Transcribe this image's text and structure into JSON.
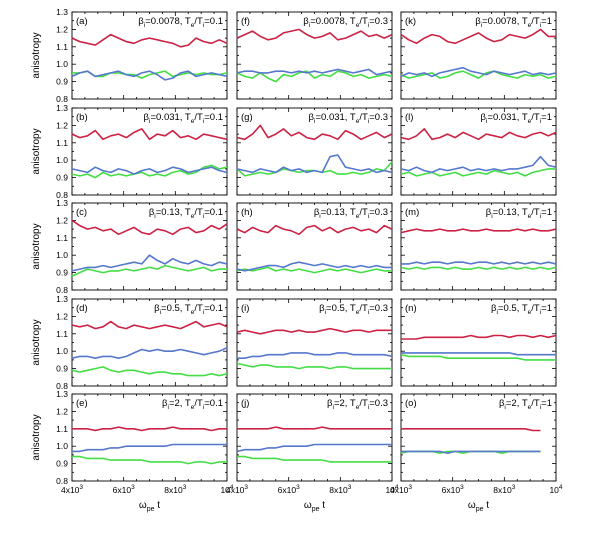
{
  "figure": {
    "y_label": "anisotropy",
    "x_label_main": "ω",
    "x_label_sub": "pe",
    "x_label_tail": " t"
  },
  "colors": {
    "red": "#cc2244",
    "blue": "#5577cc",
    "green": "#44dd44"
  },
  "chart_data": {
    "type": "line",
    "grid": false,
    "x": [
      4000,
      4300,
      4600,
      4900,
      5200,
      5500,
      5800,
      6100,
      6400,
      6700,
      7000,
      7300,
      7600,
      7900,
      8200,
      8500,
      8800,
      9100,
      9400,
      9700,
      10000
    ],
    "xlim": [
      4000,
      10000
    ],
    "ylim": [
      0.8,
      1.3
    ],
    "x_ticks": [
      {
        "main": "4x10",
        "exp": "3"
      },
      {
        "main": "6x10",
        "exp": "3"
      },
      {
        "main": "8x10",
        "exp": "3"
      },
      {
        "main": "10",
        "exp": "4"
      }
    ],
    "y_ticks": [
      "0.8",
      "0.9",
      "1.0",
      "1.1",
      "1.2",
      "1.3"
    ],
    "panels": [
      {
        "label": "(a)",
        "beta": "0.0078",
        "ratio": "0.1",
        "red": [
          1.15,
          1.13,
          1.12,
          1.11,
          1.14,
          1.17,
          1.15,
          1.13,
          1.12,
          1.14,
          1.15,
          1.14,
          1.13,
          1.12,
          1.1,
          1.11,
          1.15,
          1.13,
          1.12,
          1.14,
          1.12
        ],
        "blue": [
          0.93,
          0.95,
          0.96,
          0.93,
          0.94,
          0.95,
          0.96,
          0.94,
          0.93,
          0.95,
          0.96,
          0.94,
          0.91,
          0.92,
          0.95,
          0.96,
          0.93,
          0.94,
          0.95,
          0.94,
          0.93
        ],
        "green": [
          0.95,
          0.95,
          0.96,
          0.93,
          0.93,
          0.95,
          0.95,
          0.94,
          0.94,
          0.92,
          0.94,
          0.95,
          0.96,
          0.93,
          0.94,
          0.95,
          0.94,
          0.95,
          0.94,
          0.94,
          0.95
        ]
      },
      {
        "label": "(b)",
        "beta": "0.031",
        "ratio": "0.1",
        "red": [
          1.15,
          1.13,
          1.14,
          1.17,
          1.12,
          1.14,
          1.15,
          1.13,
          1.16,
          1.18,
          1.12,
          1.15,
          1.14,
          1.17,
          1.13,
          1.14,
          1.12,
          1.15,
          1.14,
          1.13,
          1.12
        ],
        "blue": [
          0.95,
          0.94,
          0.93,
          0.96,
          0.94,
          0.93,
          0.95,
          0.94,
          0.92,
          0.94,
          0.95,
          0.93,
          0.94,
          0.96,
          0.95,
          0.93,
          0.94,
          0.95,
          0.96,
          0.94,
          0.93
        ],
        "green": [
          0.92,
          0.91,
          0.92,
          0.9,
          0.93,
          0.91,
          0.92,
          0.91,
          0.92,
          0.93,
          0.91,
          0.92,
          0.91,
          0.93,
          0.94,
          0.92,
          0.93,
          0.96,
          0.97,
          0.95,
          0.96
        ]
      },
      {
        "label": "(c)",
        "beta": "0.13",
        "ratio": "0.1",
        "red": [
          1.2,
          1.17,
          1.15,
          1.16,
          1.14,
          1.15,
          1.12,
          1.14,
          1.16,
          1.13,
          1.12,
          1.15,
          1.14,
          1.12,
          1.15,
          1.16,
          1.13,
          1.14,
          1.17,
          1.15,
          1.18
        ],
        "blue": [
          0.91,
          0.92,
          0.93,
          0.93,
          0.94,
          0.93,
          0.94,
          0.95,
          0.96,
          0.95,
          1.0,
          0.97,
          0.95,
          0.98,
          0.96,
          0.95,
          0.97,
          0.95,
          0.94,
          0.96,
          0.95
        ],
        "green": [
          0.88,
          0.9,
          0.92,
          0.91,
          0.9,
          0.91,
          0.91,
          0.92,
          0.91,
          0.92,
          0.93,
          0.92,
          0.94,
          0.93,
          0.92,
          0.91,
          0.92,
          0.93,
          0.91,
          0.92,
          0.92
        ]
      },
      {
        "label": "(d)",
        "beta": "0.5",
        "ratio": "0.1",
        "red": [
          1.15,
          1.14,
          1.15,
          1.13,
          1.14,
          1.17,
          1.14,
          1.13,
          1.15,
          1.14,
          1.13,
          1.14,
          1.15,
          1.14,
          1.13,
          1.15,
          1.17,
          1.14,
          1.15,
          1.16,
          1.14
        ],
        "blue": [
          0.96,
          0.97,
          0.97,
          0.96,
          0.97,
          0.97,
          0.96,
          0.97,
          0.99,
          1.01,
          1.0,
          1.01,
          1.0,
          1.0,
          1.01,
          1.0,
          0.99,
          0.98,
          0.99,
          1.0,
          1.02
        ],
        "green": [
          0.89,
          0.88,
          0.89,
          0.9,
          0.91,
          0.89,
          0.88,
          0.89,
          0.89,
          0.88,
          0.87,
          0.88,
          0.88,
          0.87,
          0.87,
          0.86,
          0.86,
          0.86,
          0.87,
          0.86,
          0.87
        ]
      },
      {
        "label": "(e)",
        "beta": "2",
        "ratio": "0.1",
        "red": [
          1.1,
          1.1,
          1.1,
          1.09,
          1.1,
          1.1,
          1.11,
          1.1,
          1.1,
          1.09,
          1.1,
          1.1,
          1.1,
          1.11,
          1.1,
          1.1,
          1.1,
          1.1,
          1.09,
          1.1,
          1.1
        ],
        "blue": [
          0.97,
          0.97,
          0.98,
          0.98,
          0.98,
          0.99,
          0.99,
          1.0,
          1.0,
          1.0,
          1.0,
          1.0,
          1.0,
          1.01,
          1.01,
          1.01,
          1.01,
          1.01,
          1.01,
          1.01,
          1.01
        ],
        "green": [
          0.94,
          0.94,
          0.93,
          0.93,
          0.93,
          0.92,
          0.92,
          0.92,
          0.92,
          0.92,
          0.91,
          0.91,
          0.91,
          0.91,
          0.91,
          0.9,
          0.91,
          0.91,
          0.9,
          0.91,
          0.91
        ]
      },
      {
        "label": "(f)",
        "beta": "0.0078",
        "ratio": "0.3",
        "red": [
          1.15,
          1.17,
          1.19,
          1.16,
          1.14,
          1.15,
          1.18,
          1.19,
          1.2,
          1.17,
          1.15,
          1.16,
          1.18,
          1.14,
          1.15,
          1.17,
          1.19,
          1.16,
          1.17,
          1.15,
          1.17
        ],
        "blue": [
          0.95,
          0.96,
          0.96,
          0.95,
          0.95,
          0.96,
          0.96,
          0.95,
          0.96,
          0.95,
          0.96,
          0.95,
          0.96,
          0.97,
          0.96,
          0.95,
          0.96,
          0.97,
          0.94,
          0.95,
          0.96
        ],
        "green": [
          0.95,
          0.93,
          0.92,
          0.95,
          0.92,
          0.9,
          0.94,
          0.93,
          0.95,
          0.96,
          0.92,
          0.94,
          0.93,
          0.96,
          0.95,
          0.93,
          0.94,
          0.92,
          0.93,
          0.94,
          0.93
        ]
      },
      {
        "label": "(g)",
        "beta": "0.031",
        "ratio": "0.3",
        "red": [
          1.13,
          1.12,
          1.15,
          1.2,
          1.13,
          1.15,
          1.18,
          1.14,
          1.16,
          1.13,
          1.12,
          1.15,
          1.14,
          1.12,
          1.17,
          1.15,
          1.12,
          1.14,
          1.16,
          1.13,
          1.15
        ],
        "blue": [
          0.95,
          0.94,
          0.93,
          0.95,
          0.94,
          0.93,
          0.96,
          0.94,
          0.95,
          0.93,
          0.94,
          0.93,
          1.02,
          1.03,
          0.96,
          0.95,
          0.94,
          0.95,
          0.93,
          0.94,
          0.93
        ],
        "green": [
          0.95,
          0.91,
          0.92,
          0.93,
          0.92,
          0.93,
          0.95,
          0.94,
          0.93,
          0.94,
          0.94,
          0.93,
          0.94,
          0.92,
          0.92,
          0.93,
          0.92,
          0.93,
          0.95,
          0.94,
          0.99
        ]
      },
      {
        "label": "(h)",
        "beta": "0.13",
        "ratio": "0.3",
        "red": [
          1.15,
          1.13,
          1.16,
          1.14,
          1.13,
          1.17,
          1.15,
          1.14,
          1.12,
          1.16,
          1.17,
          1.14,
          1.16,
          1.13,
          1.15,
          1.16,
          1.14,
          1.15,
          1.13,
          1.17,
          1.15
        ],
        "blue": [
          0.92,
          0.91,
          0.92,
          0.93,
          0.94,
          0.94,
          0.93,
          0.95,
          0.96,
          0.95,
          0.94,
          0.95,
          0.94,
          0.93,
          0.94,
          0.93,
          0.94,
          0.93,
          0.94,
          0.93,
          0.93
        ],
        "green": [
          0.91,
          0.92,
          0.91,
          0.92,
          0.93,
          0.91,
          0.92,
          0.91,
          0.92,
          0.91,
          0.9,
          0.91,
          0.92,
          0.91,
          0.92,
          0.91,
          0.9,
          0.91,
          0.92,
          0.91,
          0.91
        ]
      },
      {
        "label": "(i)",
        "beta": "0.5",
        "ratio": "0.3",
        "red": [
          1.11,
          1.12,
          1.11,
          1.1,
          1.11,
          1.12,
          1.12,
          1.11,
          1.12,
          1.11,
          1.11,
          1.12,
          1.13,
          1.12,
          1.11,
          1.12,
          1.12,
          1.11,
          1.12,
          1.12,
          1.12
        ],
        "blue": [
          0.96,
          0.96,
          0.97,
          0.97,
          0.98,
          0.98,
          0.98,
          0.99,
          0.99,
          0.99,
          0.98,
          0.98,
          0.98,
          0.99,
          0.99,
          0.98,
          0.98,
          0.98,
          0.98,
          0.98,
          0.97
        ],
        "green": [
          0.93,
          0.92,
          0.91,
          0.92,
          0.92,
          0.91,
          0.91,
          0.91,
          0.9,
          0.91,
          0.91,
          0.91,
          0.9,
          0.91,
          0.91,
          0.9,
          0.9,
          0.9,
          0.9,
          0.9,
          0.9
        ]
      },
      {
        "label": "(j)",
        "beta": "2",
        "ratio": "0.3",
        "red": [
          1.1,
          1.1,
          1.1,
          1.1,
          1.1,
          1.11,
          1.1,
          1.1,
          1.1,
          1.1,
          1.1,
          1.11,
          1.1,
          1.1,
          1.1,
          1.1,
          1.1,
          1.1,
          1.1,
          1.1,
          1.1
        ],
        "blue": [
          0.97,
          0.98,
          0.98,
          0.98,
          0.99,
          0.99,
          1.0,
          1.0,
          1.0,
          1.0,
          1.01,
          1.01,
          1.01,
          1.01,
          1.01,
          1.01,
          1.01,
          1.01,
          1.01,
          1.01,
          1.01
        ],
        "green": [
          0.94,
          0.94,
          0.93,
          0.93,
          0.93,
          0.93,
          0.92,
          0.92,
          0.92,
          0.92,
          0.92,
          0.92,
          0.91,
          0.91,
          0.91,
          0.91,
          0.91,
          0.91,
          0.91,
          0.91,
          0.91
        ]
      },
      {
        "label": "(k)",
        "beta": "0.0078",
        "ratio": "1",
        "red": [
          1.17,
          1.14,
          1.12,
          1.15,
          1.17,
          1.16,
          1.13,
          1.12,
          1.14,
          1.16,
          1.18,
          1.15,
          1.13,
          1.14,
          1.17,
          1.16,
          1.15,
          1.17,
          1.2,
          1.16,
          1.16
        ],
        "blue": [
          0.93,
          0.95,
          0.94,
          0.95,
          0.93,
          0.95,
          0.96,
          0.97,
          0.98,
          0.96,
          0.95,
          0.94,
          0.96,
          0.95,
          0.94,
          0.95,
          0.96,
          0.94,
          0.95,
          0.94,
          0.95
        ],
        "green": [
          0.94,
          0.92,
          0.93,
          0.94,
          0.95,
          0.92,
          0.93,
          0.95,
          0.96,
          0.94,
          0.92,
          0.95,
          0.96,
          0.94,
          0.93,
          0.92,
          0.94,
          0.93,
          0.94,
          0.92,
          0.93
        ]
      },
      {
        "label": "(l)",
        "beta": "0.031",
        "ratio": "1",
        "red": [
          1.13,
          1.12,
          1.14,
          1.18,
          1.12,
          1.13,
          1.15,
          1.13,
          1.16,
          1.14,
          1.12,
          1.15,
          1.14,
          1.13,
          1.16,
          1.14,
          1.13,
          1.15,
          1.16,
          1.14,
          1.16
        ],
        "blue": [
          0.95,
          0.94,
          0.96,
          0.94,
          0.93,
          0.95,
          0.94,
          0.95,
          0.96,
          0.94,
          0.95,
          0.94,
          0.95,
          0.94,
          0.95,
          0.95,
          0.96,
          0.97,
          1.02,
          0.97,
          0.96
        ],
        "green": [
          0.92,
          0.93,
          0.91,
          0.92,
          0.93,
          0.91,
          0.92,
          0.93,
          0.91,
          0.92,
          0.93,
          0.92,
          0.94,
          0.93,
          0.92,
          0.93,
          0.91,
          0.93,
          0.94,
          0.95,
          0.95
        ]
      },
      {
        "label": "(m)",
        "beta": "0.13",
        "ratio": "1",
        "red": [
          1.13,
          1.14,
          1.15,
          1.14,
          1.14,
          1.15,
          1.14,
          1.14,
          1.15,
          1.14,
          1.14,
          1.15,
          1.14,
          1.14,
          1.14,
          1.15,
          1.14,
          1.15,
          1.14,
          1.14,
          1.15
        ],
        "blue": [
          0.95,
          0.95,
          0.96,
          0.95,
          0.96,
          0.96,
          0.95,
          0.96,
          0.96,
          0.95,
          0.96,
          0.96,
          0.95,
          0.96,
          0.95,
          0.96,
          0.95,
          0.96,
          0.95,
          0.96,
          0.95
        ],
        "green": [
          0.93,
          0.92,
          0.93,
          0.92,
          0.93,
          0.93,
          0.92,
          0.93,
          0.92,
          0.92,
          0.93,
          0.92,
          0.93,
          0.92,
          0.93,
          0.92,
          0.93,
          0.92,
          0.93,
          0.92,
          0.93
        ]
      },
      {
        "label": "(n)",
        "beta": "0.5",
        "ratio": "1",
        "red": [
          1.07,
          1.07,
          1.07,
          1.08,
          1.08,
          1.08,
          1.08,
          1.08,
          1.08,
          1.09,
          1.08,
          1.08,
          1.09,
          1.09,
          1.08,
          1.09,
          1.09,
          1.08,
          1.09,
          1.08,
          1.09
        ],
        "blue": [
          0.99,
          0.99,
          0.99,
          0.99,
          0.99,
          0.99,
          0.99,
          0.99,
          0.99,
          0.99,
          0.99,
          0.99,
          0.99,
          0.99,
          0.99,
          0.98,
          0.98,
          0.98,
          0.98,
          0.98,
          0.98
        ],
        "green": [
          0.98,
          0.97,
          0.97,
          0.97,
          0.97,
          0.97,
          0.96,
          0.96,
          0.96,
          0.96,
          0.96,
          0.96,
          0.96,
          0.96,
          0.96,
          0.96,
          0.95,
          0.95,
          0.95,
          0.95,
          0.95
        ]
      },
      {
        "label": "(o)",
        "beta": "2",
        "ratio": "1",
        "red": [
          1.1,
          1.1,
          1.1,
          1.1,
          1.1,
          1.1,
          1.1,
          1.1,
          1.1,
          1.1,
          1.1,
          1.1,
          1.1,
          1.1,
          1.1,
          1.1,
          1.1,
          1.09,
          1.09,
          null,
          null
        ],
        "blue": [
          0.97,
          0.97,
          0.97,
          0.97,
          0.97,
          0.97,
          0.96,
          0.97,
          0.97,
          0.97,
          0.97,
          0.97,
          0.97,
          0.97,
          0.97,
          0.97,
          0.97,
          0.97,
          0.97,
          null,
          null
        ],
        "green": [
          0.96,
          0.97,
          0.97,
          0.97,
          0.97,
          0.96,
          0.97,
          0.97,
          0.96,
          0.97,
          0.97,
          0.97,
          0.97,
          0.96,
          0.97,
          0.97,
          0.97,
          0.97,
          0.97,
          null,
          null
        ]
      }
    ]
  }
}
